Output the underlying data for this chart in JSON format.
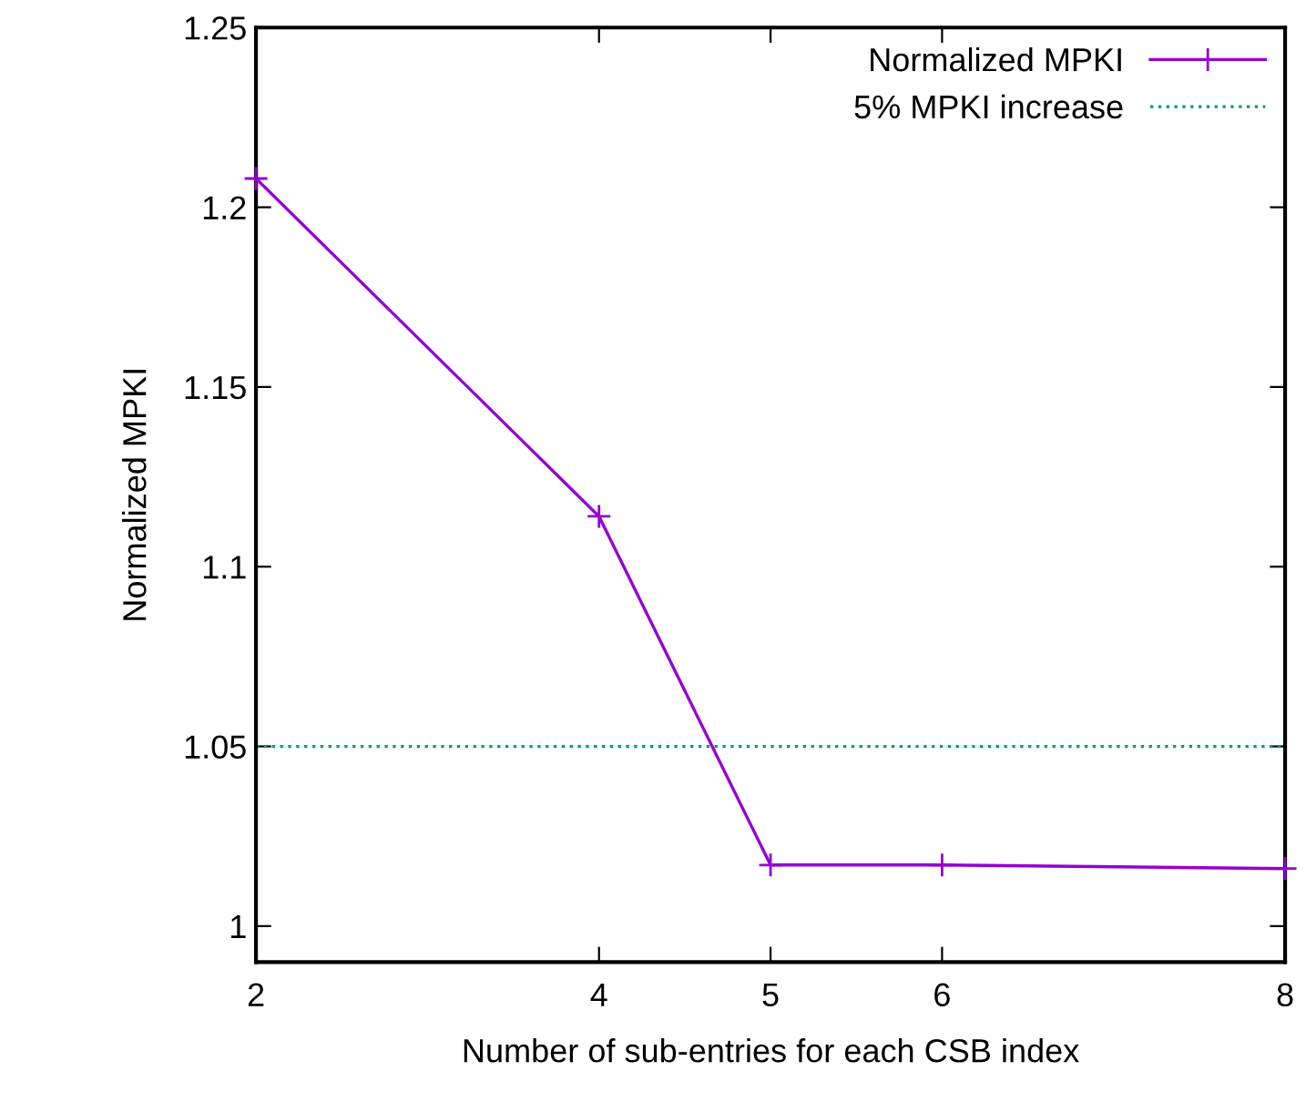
{
  "chart_data": {
    "type": "line",
    "xlabel": "Number of sub-entries for each CSB index",
    "ylabel": "Normalized MPKI",
    "x": [
      2,
      4,
      5,
      6,
      8
    ],
    "series": [
      {
        "name": "Normalized MPKI",
        "color": "#9400d3",
        "values": [
          1.208,
          1.114,
          1.017,
          1.017,
          1.016
        ]
      }
    ],
    "xlim": [
      2,
      8
    ],
    "xticks": [
      2,
      4,
      5,
      6,
      8
    ],
    "ylim": [
      0.99,
      1.25
    ],
    "yticks": [
      1,
      1.05,
      1.1,
      1.15,
      1.2,
      1.25
    ],
    "ref_lines": [
      {
        "axis": "y",
        "value": 1.05,
        "label": "5% MPKI increase",
        "color": "#009e73",
        "line_style": "dotted"
      }
    ],
    "marker": "cross",
    "line_style": "solid",
    "legend": "top right",
    "grid": false
  }
}
